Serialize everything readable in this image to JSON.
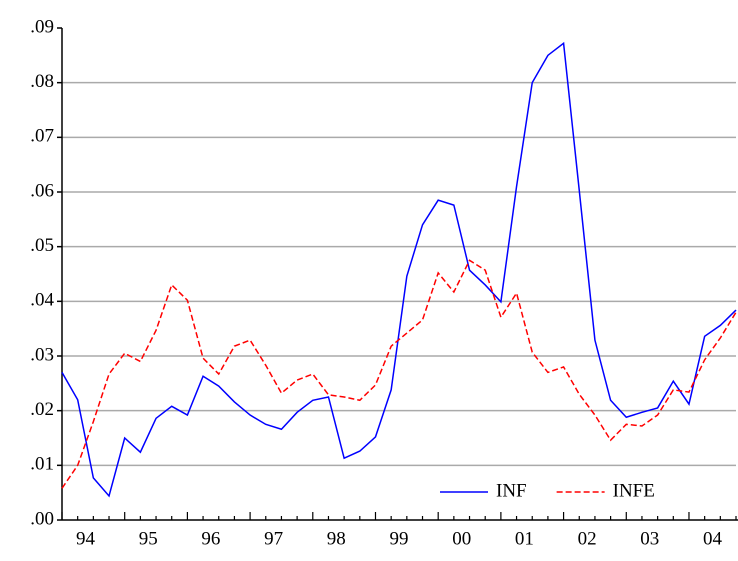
{
  "chart_data": {
    "type": "line",
    "x": [
      1994,
      1994.25,
      1994.5,
      1994.75,
      1995,
      1995.25,
      1995.5,
      1995.75,
      1996,
      1996.25,
      1996.5,
      1996.75,
      1997,
      1997.25,
      1997.5,
      1997.75,
      1998,
      1998.25,
      1998.5,
      1998.75,
      1999,
      1999.25,
      1999.5,
      1999.75,
      2000,
      2000.25,
      2000.5,
      2000.75,
      2001,
      2001.25,
      2001.5,
      2001.75,
      2002,
      2002.25,
      2002.5,
      2002.75,
      2003,
      2003.25,
      2003.5,
      2003.75,
      2004,
      2004.25,
      2004.5,
      2004.75
    ],
    "series": [
      {
        "name": "INF",
        "color": "#0000ff",
        "dash": "solid",
        "values": [
          0.027,
          0.022,
          0.0077,
          0.0044,
          0.015,
          0.0124,
          0.0186,
          0.0208,
          0.0192,
          0.0263,
          0.0245,
          0.0216,
          0.0192,
          0.0175,
          0.0166,
          0.0197,
          0.0219,
          0.0225,
          0.0113,
          0.0126,
          0.0152,
          0.0238,
          0.0446,
          0.054,
          0.0585,
          0.0576,
          0.0457,
          0.043,
          0.0399,
          0.061,
          0.08,
          0.085,
          0.0872,
          0.0603,
          0.0329,
          0.0219,
          0.0188,
          0.0197,
          0.0205,
          0.0254,
          0.0212,
          0.0336,
          0.0356,
          0.0384
        ]
      },
      {
        "name": "INFE",
        "color": "#ff0000",
        "dash": "dashed",
        "values": [
          0.0058,
          0.01,
          0.018,
          0.0267,
          0.0305,
          0.029,
          0.0347,
          0.043,
          0.0402,
          0.0296,
          0.0267,
          0.0318,
          0.0329,
          0.0283,
          0.0232,
          0.0256,
          0.0267,
          0.0229,
          0.0225,
          0.0219,
          0.0247,
          0.0318,
          0.0342,
          0.0366,
          0.0452,
          0.0417,
          0.0475,
          0.0457,
          0.0371,
          0.0415,
          0.0307,
          0.027,
          0.028,
          0.023,
          0.0192,
          0.0146,
          0.0175,
          0.0172,
          0.0192,
          0.0238,
          0.0234,
          0.0293,
          0.0333,
          0.038
        ]
      }
    ],
    "xlim": [
      1994,
      2004.75
    ],
    "xticks": [
      {
        "value": 1994.375,
        "label": "94"
      },
      {
        "value": 1995.375,
        "label": "95"
      },
      {
        "value": 1996.375,
        "label": "96"
      },
      {
        "value": 1997.375,
        "label": "97"
      },
      {
        "value": 1998.375,
        "label": "98"
      },
      {
        "value": 1999.375,
        "label": "99"
      },
      {
        "value": 2000.375,
        "label": "00"
      },
      {
        "value": 2001.375,
        "label": "01"
      },
      {
        "value": 2002.375,
        "label": "02"
      },
      {
        "value": 2003.375,
        "label": "03"
      },
      {
        "value": 2004.375,
        "label": "04"
      }
    ],
    "ylim": [
      0,
      0.09
    ],
    "yticks": [
      {
        "value": 0,
        "label": ".00"
      },
      {
        "value": 0.01,
        "label": ".01"
      },
      {
        "value": 0.02,
        "label": ".02"
      },
      {
        "value": 0.03,
        "label": ".03"
      },
      {
        "value": 0.04,
        "label": ".04"
      },
      {
        "value": 0.05,
        "label": ".05"
      },
      {
        "value": 0.06,
        "label": ".06"
      },
      {
        "value": 0.07,
        "label": ".07"
      },
      {
        "value": 0.08,
        "label": ".08"
      },
      {
        "value": 0.09,
        "label": ".09"
      }
    ],
    "grid": true,
    "legend": "lower right"
  }
}
